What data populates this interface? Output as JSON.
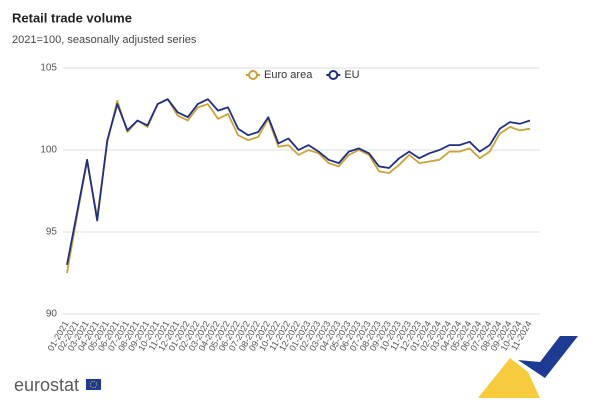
{
  "chart_data": {
    "type": "line",
    "title": "Retail trade volume",
    "subtitle": "2021=100, seasonally adjusted series",
    "categories": [
      "01-2021",
      "02-2021",
      "03-2021",
      "04-2021",
      "05-2021",
      "06-2021",
      "07-2021",
      "08-2021",
      "09-2021",
      "10-2021",
      "11-2021",
      "12-2021",
      "01-2022",
      "02-2022",
      "03-2022",
      "04-2022",
      "05-2022",
      "06-2022",
      "07-2022",
      "08-2022",
      "09-2022",
      "10-2022",
      "11-2022",
      "12-2022",
      "01-2023",
      "02-2023",
      "03-2023",
      "04-2023",
      "05-2023",
      "06-2023",
      "07-2023",
      "08-2023",
      "09-2023",
      "10-2023",
      "11-2023",
      "12-2023",
      "01-2024",
      "02-2024",
      "03-2024",
      "04-2024",
      "05-2024",
      "06-2024",
      "07-2024",
      "08-2024",
      "09-2024",
      "10-2024",
      "11-2024"
    ],
    "series": [
      {
        "name": "Euro area",
        "color": "#c9a33a",
        "values": [
          92.5,
          96.0,
          99.3,
          95.9,
          100.5,
          103.0,
          101.1,
          101.8,
          101.4,
          102.8,
          103.1,
          102.1,
          101.8,
          102.6,
          102.8,
          101.9,
          102.2,
          100.9,
          100.6,
          100.8,
          101.9,
          100.2,
          100.3,
          99.7,
          100.0,
          99.8,
          99.2,
          99.0,
          99.7,
          100.0,
          99.7,
          98.7,
          98.6,
          99.1,
          99.7,
          99.2,
          99.3,
          99.4,
          99.9,
          99.9,
          100.1,
          99.5,
          99.9,
          101.0,
          101.4,
          101.2,
          101.3
        ]
      },
      {
        "name": "EU",
        "color": "#1f2f86",
        "values": [
          93.0,
          96.2,
          99.4,
          95.7,
          100.6,
          102.8,
          101.2,
          101.8,
          101.5,
          102.8,
          103.1,
          102.3,
          102.0,
          102.8,
          103.1,
          102.4,
          102.6,
          101.3,
          100.9,
          101.1,
          102.0,
          100.4,
          100.7,
          100.0,
          100.3,
          99.9,
          99.4,
          99.2,
          99.9,
          100.1,
          99.8,
          99.0,
          98.9,
          99.5,
          99.9,
          99.5,
          99.8,
          100.0,
          100.3,
          100.3,
          100.5,
          99.9,
          100.3,
          101.3,
          101.7,
          101.6,
          101.8
        ]
      }
    ],
    "ylim": [
      90,
      105
    ],
    "yticks": [
      90,
      95,
      100,
      105
    ],
    "grid": true,
    "legend": "top",
    "brand": "eurostat"
  }
}
